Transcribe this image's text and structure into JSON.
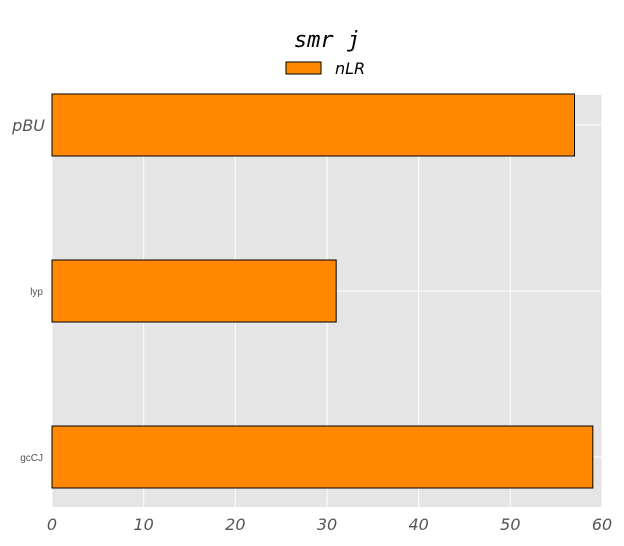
{
  "chart_data": {
    "type": "bar",
    "orientation": "horizontal",
    "title": "smr j",
    "xlabel": "",
    "ylabel": "",
    "categories": [
      "pBU",
      "lyp",
      "gcCJ"
    ],
    "series": [
      {
        "name": "nLR",
        "values": [
          57,
          31,
          59
        ]
      }
    ],
    "xlim": [
      0,
      60
    ],
    "x_ticks": [
      "0",
      "10",
      "20",
      "30",
      "40",
      "50",
      "60"
    ],
    "grid": true,
    "legend_position": "top-center",
    "colors": {
      "bar": "#ff8800",
      "bar_edge": "#000000",
      "plot_background": "#e5e5e5",
      "grid": "#ffffff"
    }
  }
}
